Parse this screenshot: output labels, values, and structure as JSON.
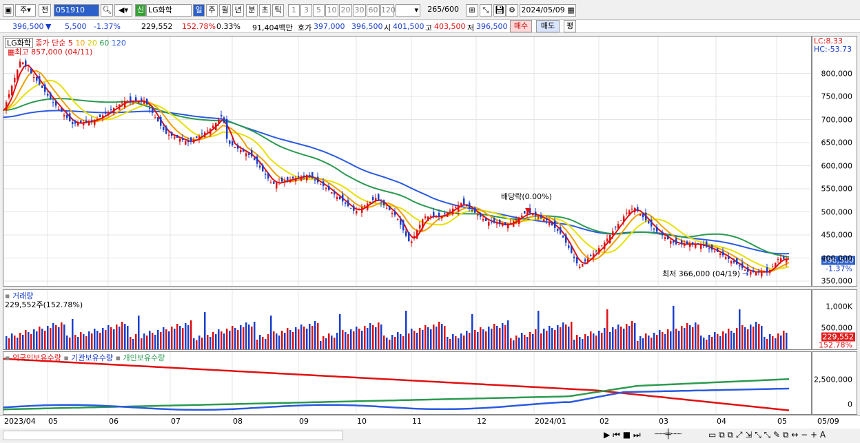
{
  "toolbar": {
    "market": "주",
    "period_prev": "전",
    "code": "051910",
    "name_badge": "신",
    "name": "LG화학",
    "periods": [
      "일",
      "주",
      "월",
      "년",
      "분",
      "초",
      "틱"
    ],
    "nums": [
      "1",
      "3",
      "5",
      "10",
      "20",
      "30",
      "60",
      "120"
    ],
    "count": "265",
    "count_max": "/600",
    "date": "2024/05/09"
  },
  "quote": {
    "price": "396,500",
    "arrow": "▼",
    "change": "5,500",
    "pct": "-1.37%",
    "volume": "229,552",
    "vol_pct": "152.78%",
    "turnover": "0.33%",
    "amount": "91,404백만",
    "ask_label": "호가",
    "ask": "397,000",
    "bid": "396,500",
    "open_label": "시",
    "open": "401,500",
    "high_label": "고",
    "high": "403,500",
    "low_label": "저",
    "low": "396,500",
    "buy": "매수",
    "sell": "매도",
    "eval": "평"
  },
  "price_panel": {
    "name": "LG화학",
    "legend_prefix": "종가 단순",
    "ma": [
      "5",
      "10",
      "20",
      "60",
      "120"
    ],
    "ma_colors": [
      "#e01010",
      "#f0a000",
      "#e8e000",
      "#2a9a50",
      "#2a5ae0"
    ],
    "high_label": "최고 857,000 (04/11)",
    "low_label": "최저 366,000 (04/19)",
    "div_label": "배당락(0.00%)",
    "lc": "LC:8.33",
    "hc": "HC:-53.73",
    "ticks": [
      "800,000",
      "750,000",
      "700,000",
      "650,000",
      "600,000",
      "550,000",
      "500,000",
      "450,000",
      "400,000",
      "350,000"
    ],
    "cur_price": "396,500",
    "cur_pct": "-1.37%"
  },
  "volume_panel": {
    "title": "거래량",
    "value": "229,552주(152.78%)",
    "ticks": [
      "1,000K",
      "500,000"
    ],
    "cur": "229,552",
    "cur_pct": "152.78%"
  },
  "holder_panel": {
    "foreign": "외국인보유수량",
    "inst": "기관보유수량",
    "indiv": "개인보유수량",
    "ticks": [
      "2,500,000",
      "0"
    ],
    "colors": [
      "#e01010",
      "#2a5ae0",
      "#2a9a50"
    ]
  },
  "dates": [
    "2023/04",
    "05",
    "06",
    "07",
    "08",
    "09",
    "10",
    "11",
    "12",
    "2024/01",
    "02",
    "03",
    "04",
    "05",
    "05/09"
  ]
}
